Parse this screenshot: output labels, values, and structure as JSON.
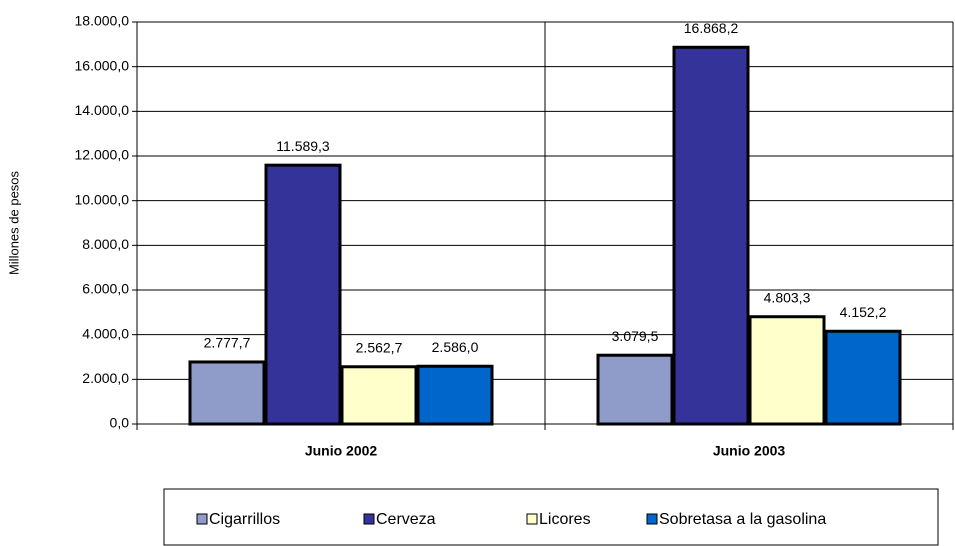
{
  "chart_data": {
    "type": "bar",
    "y_label": "Millones de pesos",
    "categories": [
      "Junio 2002",
      "Junio 2003"
    ],
    "series": [
      {
        "name": "Cigarrillos",
        "color": "#8f9bc8",
        "values": [
          2777.7,
          3079.5
        ],
        "value_labels": [
          "2.777,7",
          "3.079,5"
        ]
      },
      {
        "name": "Cerveza",
        "color": "#333399",
        "values": [
          11589.3,
          16868.2
        ],
        "value_labels": [
          "11.589,3",
          "16.868,2"
        ]
      },
      {
        "name": "Licores",
        "color": "#ffffcc",
        "values": [
          2562.7,
          4803.3
        ],
        "value_labels": [
          "2.562,7",
          "4.803,3"
        ]
      },
      {
        "name": "Sobretasa a la gasolina",
        "color": "#0066cc",
        "values": [
          2586.0,
          4152.2
        ],
        "value_labels": [
          "2.586,0",
          "4.152,2"
        ]
      }
    ],
    "ylim": [
      0,
      18000
    ],
    "yticks": [
      {
        "value": 0,
        "label": "0,0"
      },
      {
        "value": 2000,
        "label": "2.000,0"
      },
      {
        "value": 4000,
        "label": "4.000,0"
      },
      {
        "value": 6000,
        "label": "6.000,0"
      },
      {
        "value": 8000,
        "label": "8.000,0"
      },
      {
        "value": 10000,
        "label": "10.000,0"
      },
      {
        "value": 12000,
        "label": "12.000,0"
      },
      {
        "value": 14000,
        "label": "14.000,0"
      },
      {
        "value": 16000,
        "label": "16.000,0"
      },
      {
        "value": 18000,
        "label": "18.000,0"
      }
    ],
    "grid": true
  }
}
